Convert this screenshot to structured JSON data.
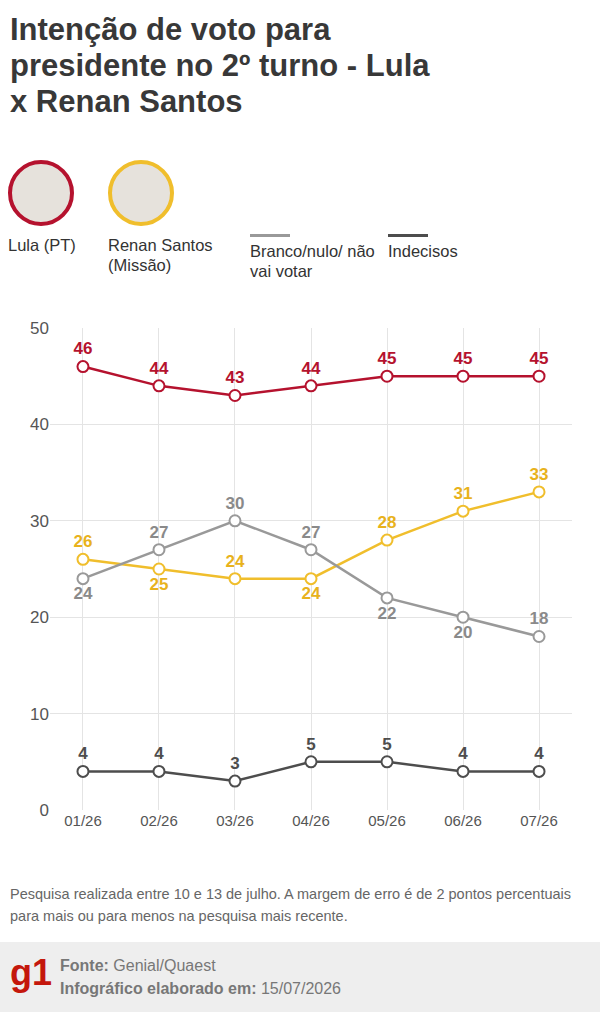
{
  "chart_data": {
    "type": "line",
    "title": "Intenção de voto para presidente no 2º turno - Lula x Renan Santos",
    "categories": [
      "01/26",
      "02/26",
      "03/26",
      "04/26",
      "05/26",
      "06/26",
      "07/26"
    ],
    "series": [
      {
        "name": "Lula (PT)",
        "color": "#b5122e",
        "values": [
          46,
          44,
          43,
          44,
          45,
          45,
          45
        ]
      },
      {
        "name": "Renan Santos (Missão)",
        "color": "#f0be2c",
        "values": [
          26,
          25,
          24,
          24,
          28,
          31,
          33
        ]
      },
      {
        "name": "Branco/nulo/ não vai votar",
        "color": "#999999",
        "values": [
          24,
          27,
          30,
          27,
          22,
          20,
          18
        ]
      },
      {
        "name": "Indecisos",
        "color": "#4d4d4d",
        "values": [
          4,
          4,
          3,
          5,
          5,
          4,
          4
        ]
      }
    ],
    "ylim": [
      0,
      50
    ],
    "yticks": [
      0,
      10,
      20,
      30,
      40,
      50
    ],
    "grid": true,
    "data_labels": true,
    "marker": "circle",
    "legend": "top"
  },
  "footer": {
    "note": "Pesquisa realizada entre 10 e 13 de julho. A margem de erro é de 2 pontos percentuais para mais ou para menos na pesquisa mais recente.",
    "logo": "g1",
    "source_label": "Fonte:",
    "source": "Genial/Quaest",
    "date_label": "Infográfico elaborado em:",
    "date": "15/07/2026"
  }
}
